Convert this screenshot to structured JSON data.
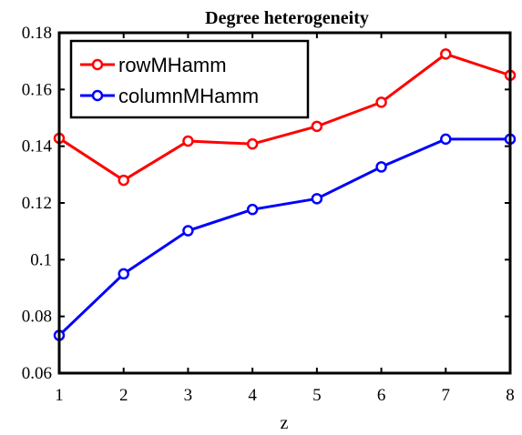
{
  "chart_data": {
    "type": "line",
    "title": "Degree heterogeneity",
    "xlabel": "z",
    "ylabel": "",
    "x": [
      1,
      2,
      3,
      4,
      5,
      6,
      7,
      8
    ],
    "xlim": [
      1,
      8
    ],
    "ylim": [
      0.06,
      0.18
    ],
    "xticks": [
      "1",
      "2",
      "3",
      "4",
      "5",
      "6",
      "7",
      "8"
    ],
    "yticks": [
      "0.06",
      "0.08",
      "0.1",
      "0.12",
      "0.14",
      "0.16",
      "0.18"
    ],
    "grid": false,
    "legend_position": "top-left",
    "series": [
      {
        "name": "rowMHamm",
        "color": "#ff0000",
        "marker": "circle",
        "values": [
          0.1428,
          0.128,
          0.1418,
          0.1408,
          0.147,
          0.1555,
          0.1725,
          0.165
        ]
      },
      {
        "name": "columnMHamm",
        "color": "#0000ff",
        "marker": "circle",
        "values": [
          0.0733,
          0.095,
          0.1102,
          0.1177,
          0.1215,
          0.1327,
          0.1425,
          0.1425
        ]
      }
    ]
  }
}
